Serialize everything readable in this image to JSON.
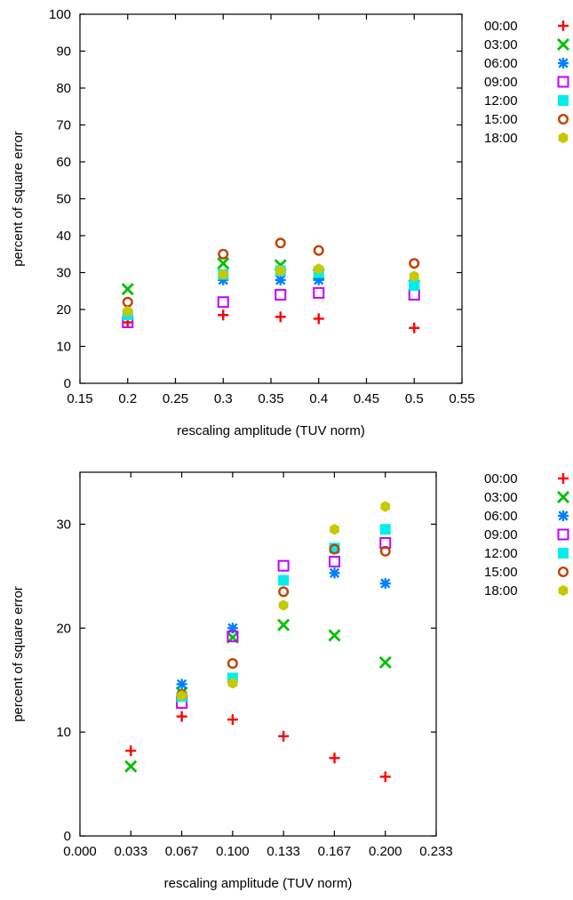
{
  "chart_data": [
    {
      "type": "scatter",
      "xlabel": "rescaling amplitude (TUV norm)",
      "ylabel": "percent of square error",
      "xlim": [
        0.15,
        0.55
      ],
      "ylim": [
        0,
        100
      ],
      "xticks": [
        "0.15",
        "0.2",
        "0.25",
        "0.3",
        "0.35",
        "0.4",
        "0.45",
        "0.5",
        "0.55"
      ],
      "yticks": [
        "0",
        "10",
        "20",
        "30",
        "40",
        "50",
        "60",
        "70",
        "80",
        "90",
        "100"
      ],
      "grid": false,
      "legend": "outside-right",
      "x": [
        0.2,
        0.3,
        0.36,
        0.4,
        0.5
      ],
      "series": [
        {
          "name": "00:00",
          "marker": "plus",
          "color": "#ff0000",
          "values": [
            16.5,
            18.5,
            18.0,
            17.5,
            15.0
          ]
        },
        {
          "name": "03:00",
          "marker": "cross",
          "color": "#00c000",
          "values": [
            25.5,
            32.5,
            32.0,
            29.5,
            26.5
          ]
        },
        {
          "name": "06:00",
          "marker": "asterisk",
          "color": "#0080ff",
          "values": [
            18.5,
            28.0,
            28.0,
            28.0,
            26.5
          ]
        },
        {
          "name": "09:00",
          "marker": "open-square",
          "color": "#c000ff",
          "values": [
            16.5,
            22.0,
            24.0,
            24.5,
            24.0
          ]
        },
        {
          "name": "12:00",
          "marker": "filled-square",
          "color": "#00eeee",
          "values": [
            18.5,
            29.5,
            30.5,
            30.0,
            26.5
          ]
        },
        {
          "name": "15:00",
          "marker": "open-circle",
          "color": "#c04000",
          "values": [
            22.0,
            35.0,
            38.0,
            36.0,
            32.5
          ]
        },
        {
          "name": "18:00",
          "marker": "filled-hexagon",
          "color": "#c8c800",
          "values": [
            19.5,
            29.5,
            30.5,
            31.0,
            29.0
          ]
        }
      ]
    },
    {
      "type": "scatter",
      "xlabel": "rescaling amplitude (TUV norm)",
      "ylabel": "percent of square error",
      "xlim": [
        0.0,
        0.2333
      ],
      "ylim": [
        0,
        35
      ],
      "xticks": [
        "0.000",
        "0.033",
        "0.067",
        "0.100",
        "0.133",
        "0.167",
        "0.200",
        "0.233"
      ],
      "yticks": [
        "0",
        "10",
        "20",
        "30"
      ],
      "grid": false,
      "legend": "outside-right",
      "x": [
        0.0333,
        0.0667,
        0.1,
        0.1333,
        0.1667,
        0.2
      ],
      "series": [
        {
          "name": "00:00",
          "marker": "plus",
          "color": "#ff0000",
          "values": [
            8.2,
            11.5,
            11.2,
            9.6,
            7.5,
            5.7
          ]
        },
        {
          "name": "03:00",
          "marker": "cross",
          "color": "#00c000",
          "values": [
            6.7,
            13.8,
            19.1,
            20.3,
            19.3,
            16.7
          ]
        },
        {
          "name": "06:00",
          "marker": "asterisk",
          "color": "#0080ff",
          "values": [
            null,
            14.6,
            20.0,
            24.6,
            25.3,
            24.3
          ]
        },
        {
          "name": "09:00",
          "marker": "open-square",
          "color": "#c000ff",
          "values": [
            null,
            12.8,
            19.2,
            26.0,
            26.4,
            28.2
          ]
        },
        {
          "name": "12:00",
          "marker": "filled-square",
          "color": "#00eeee",
          "values": [
            null,
            13.4,
            15.2,
            24.6,
            27.7,
            29.5
          ]
        },
        {
          "name": "15:00",
          "marker": "open-circle",
          "color": "#c04000",
          "values": [
            null,
            13.6,
            16.6,
            23.5,
            27.6,
            27.4
          ]
        },
        {
          "name": "18:00",
          "marker": "filled-hexagon",
          "color": "#c8c800",
          "values": [
            null,
            13.5,
            14.7,
            22.2,
            29.5,
            31.7
          ]
        }
      ]
    }
  ]
}
